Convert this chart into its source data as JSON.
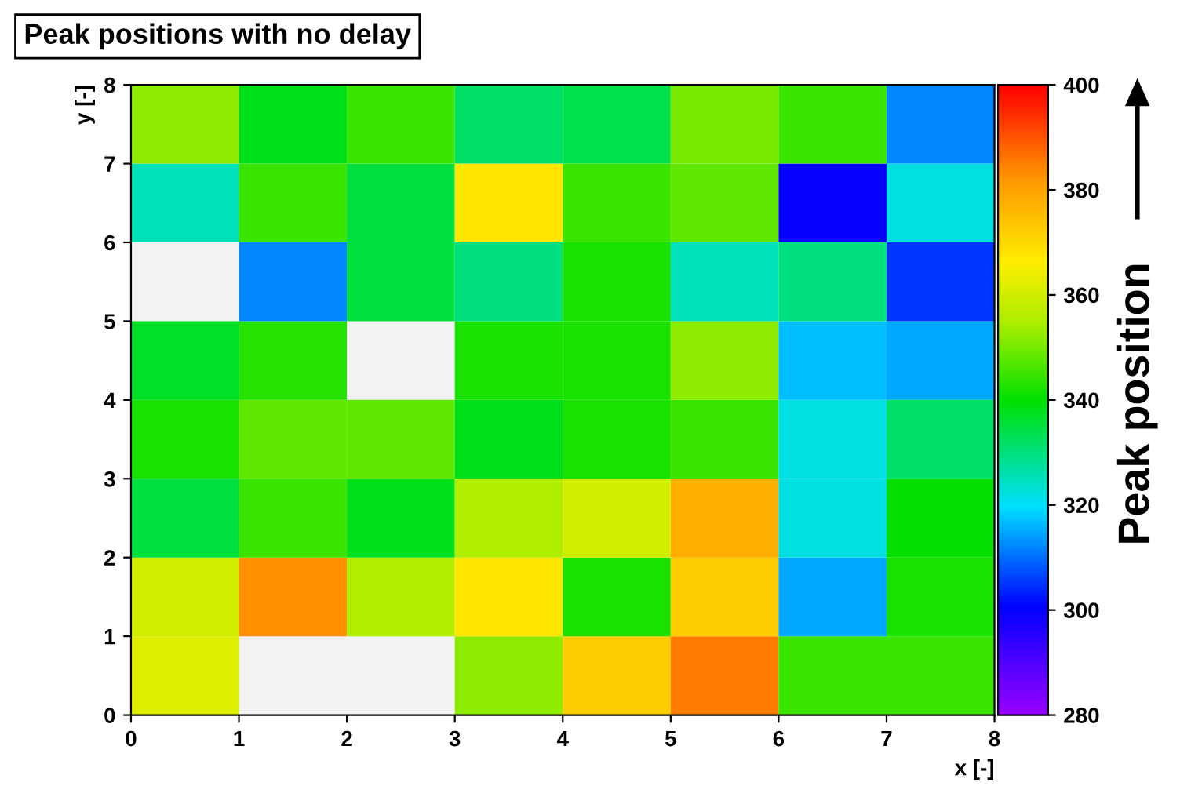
{
  "chart_data": {
    "type": "heatmap",
    "title": "Peak positions with no delay",
    "xlabel": "x [-]",
    "ylabel": "y [-]",
    "clabel": "Peak position",
    "xlim": [
      0,
      8
    ],
    "xticks": [
      0,
      1,
      2,
      3,
      4,
      5,
      6,
      7,
      8
    ],
    "ylim": [
      0,
      8
    ],
    "yticks": [
      0,
      1,
      2,
      3,
      4,
      5,
      6,
      7,
      8
    ],
    "clim": [
      280,
      400
    ],
    "cticks": [
      280,
      300,
      320,
      340,
      360,
      380,
      400
    ],
    "cells": [
      [
        352,
        338,
        345,
        332,
        334,
        350,
        345,
        312
      ],
      [
        325,
        345,
        335,
        368,
        345,
        348,
        300,
        322
      ],
      [
        null,
        312,
        335,
        330,
        342,
        325,
        330,
        305
      ],
      [
        337,
        343,
        null,
        342,
        342,
        352,
        317,
        315
      ],
      [
        342,
        348,
        348,
        338,
        342,
        345,
        322,
        332
      ],
      [
        335,
        345,
        338,
        355,
        360,
        378,
        322,
        340
      ],
      [
        360,
        383,
        355,
        368,
        342,
        372,
        315,
        342
      ],
      [
        362,
        null,
        null,
        352,
        372,
        385,
        345,
        345
      ]
    ]
  }
}
